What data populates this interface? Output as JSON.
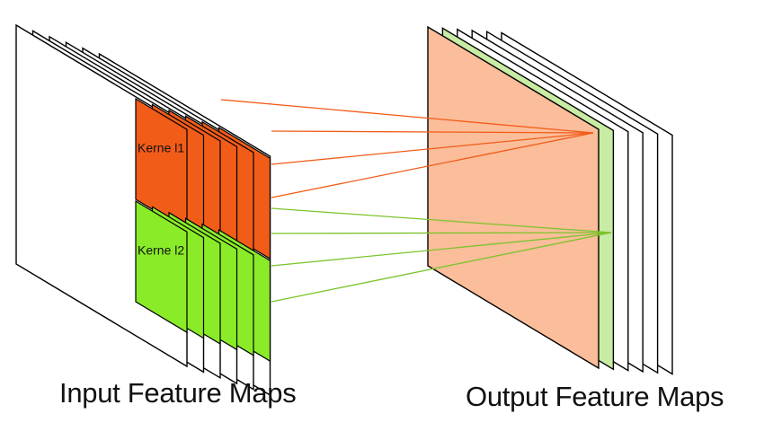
{
  "input": {
    "caption": "Input Feature Maps",
    "map_count": 6
  },
  "output": {
    "caption": "Output Feature Maps",
    "map_count": 6
  },
  "kernels": [
    {
      "label": "Kerne l1",
      "color": "#f25c19",
      "line_color": "#f25c19",
      "output_index": 0
    },
    {
      "label": "Kerne l2",
      "color": "#8aeb28",
      "line_color": "#7cc42c",
      "output_index": 1
    }
  ],
  "colors": {
    "map_fill": "#ffffff",
    "map_stroke": "#000000",
    "output_map_1": "#fbbd9a",
    "output_map_2": "#c8eca4"
  }
}
